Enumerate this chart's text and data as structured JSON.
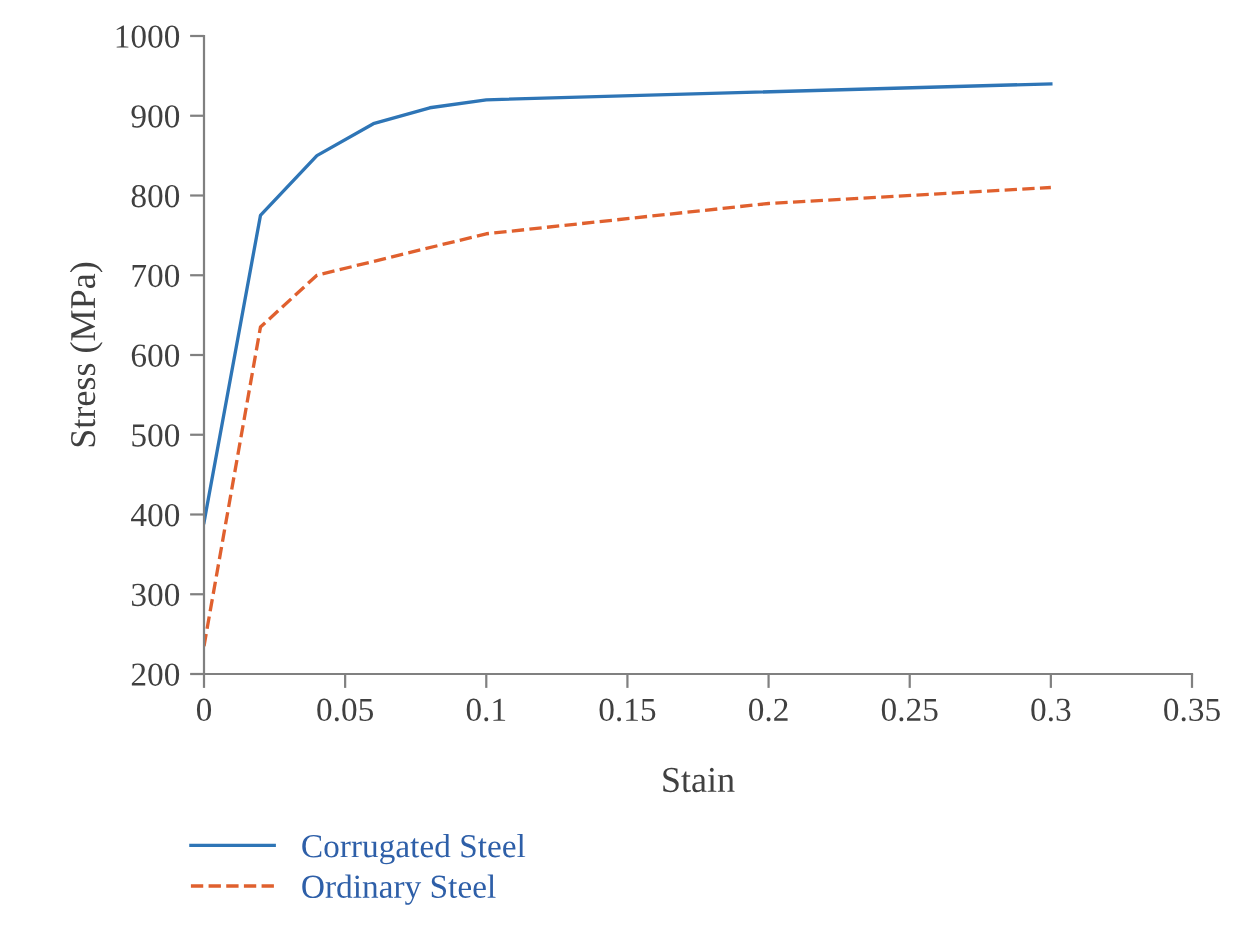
{
  "chart_data": {
    "type": "line",
    "xlabel": "Stain",
    "ylabel": "Stress (MPa)",
    "series": [
      {
        "name": "Corrugated Steel",
        "color": "#2e75b6",
        "line_style": "solid",
        "x": [
          0,
          0.02,
          0.04,
          0.06,
          0.08,
          0.1,
          0.3
        ],
        "values": [
          390,
          775,
          850,
          890,
          910,
          920,
          940
        ]
      },
      {
        "name": "Ordinary Steel",
        "color": "#e0602e",
        "line_style": "dashed",
        "x": [
          0,
          0.02,
          0.04,
          0.1,
          0.2,
          0.3
        ],
        "values": [
          235,
          635,
          700,
          752,
          790,
          810
        ]
      }
    ],
    "xlim": [
      0,
      0.35
    ],
    "xticks": [
      0,
      0.05,
      0.1,
      0.15,
      0.2,
      0.25,
      0.3,
      0.35
    ],
    "ylim": [
      200,
      1000
    ],
    "yticks": [
      200,
      300,
      400,
      500,
      600,
      700,
      800,
      900,
      1000
    ],
    "grid": false,
    "legend": "bottom left",
    "marker": "none"
  }
}
